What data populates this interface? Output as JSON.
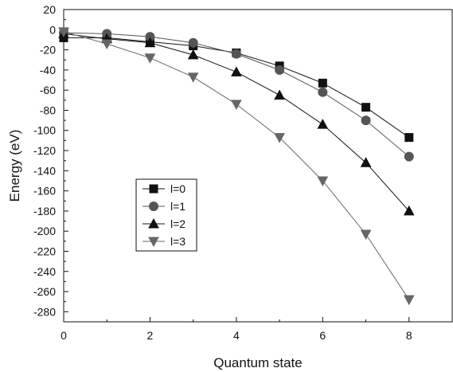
{
  "chart_data": {
    "type": "line",
    "title": "",
    "xlabel": "Quantum state",
    "ylabel": "Energy (eV)",
    "xlim": [
      0,
      9
    ],
    "ylim": [
      -290,
      20
    ],
    "x_ticks": [
      0,
      2,
      4,
      6,
      8
    ],
    "y_ticks": [
      20,
      0,
      -20,
      -40,
      -60,
      -80,
      -100,
      -120,
      -140,
      -160,
      -180,
      -200,
      -220,
      -240,
      -260,
      -280
    ],
    "grid": false,
    "legend_position": "center-left",
    "x": [
      0,
      1,
      2,
      3,
      4,
      5,
      6,
      7,
      8
    ],
    "series": [
      {
        "name": "l=0",
        "marker": "square",
        "color": "#111111",
        "values": [
          -8,
          -8,
          -12,
          -16,
          -23,
          -36,
          -53,
          -77,
          -107
        ]
      },
      {
        "name": "l=1",
        "marker": "circle",
        "color": "#555555",
        "values": [
          -3,
          -4,
          -7,
          -13,
          -24,
          -40,
          -62,
          -90,
          -126
        ]
      },
      {
        "name": "l=2",
        "marker": "triangle-up",
        "color": "#111111",
        "values": [
          -4,
          -9,
          -13,
          -25,
          -42,
          -65,
          -94,
          -132,
          -180
        ]
      },
      {
        "name": "l=3",
        "marker": "triangle-down",
        "color": "#666666",
        "values": [
          -2,
          -14,
          -28,
          -47,
          -74,
          -107,
          -150,
          -203,
          -268
        ]
      }
    ]
  }
}
